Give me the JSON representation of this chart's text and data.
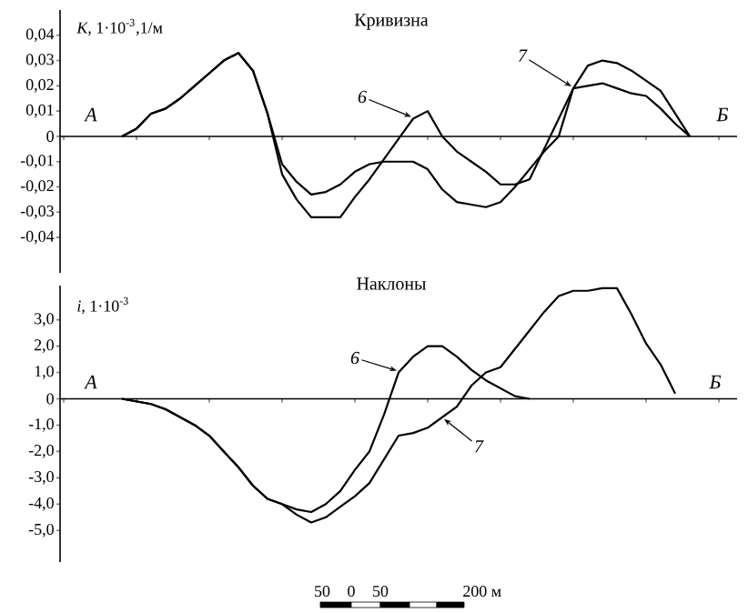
{
  "chart_data": [
    {
      "type": "line",
      "title": "Кривизна",
      "ylabel": "*K*, 1·10$^{-3}$,1/м",
      "categories": [
        null,
        null,
        null,
        null,
        null,
        null,
        null,
        null,
        null,
        null,
        null,
        null,
        null,
        null,
        null,
        null,
        null,
        null,
        null,
        null,
        null,
        null,
        null,
        null,
        null,
        null,
        null,
        null,
        null,
        null,
        null,
        null,
        null,
        null,
        null,
        null,
        null,
        null,
        null,
        null,
        null,
        null,
        null,
        null,
        null,
        null,
        null
      ],
      "series": [
        {
          "name": "6",
          "color": "#000000",
          "values": [
            null,
            null,
            null,
            null,
            0,
            0.003,
            0.009,
            0.011,
            0.015,
            0.02,
            0.025,
            0.03,
            0.033,
            0.026,
            0.009,
            -0.015,
            -0.025,
            -0.032,
            -0.032,
            -0.032,
            -0.024,
            -0.017,
            -0.009,
            -0.001,
            0.007,
            0.01,
            0.0,
            -0.006,
            -0.01,
            -0.014,
            -0.019,
            -0.019,
            -0.017,
            -0.005,
            0.007,
            0.019,
            0.028,
            0.03,
            0.029,
            0.026,
            0.022,
            0.018,
            0.009,
            0,
            null,
            null,
            null
          ]
        },
        {
          "name": "7",
          "color": "#000000",
          "values": [
            null,
            null,
            null,
            null,
            0,
            0.003,
            0.009,
            0.011,
            0.015,
            0.02,
            0.025,
            0.03,
            0.033,
            0.026,
            0.009,
            -0.011,
            -0.018,
            -0.023,
            -0.022,
            -0.019,
            -0.014,
            -0.011,
            -0.01,
            -0.01,
            -0.01,
            -0.013,
            -0.021,
            -0.026,
            -0.027,
            -0.028,
            -0.026,
            -0.02,
            -0.013,
            -0.006,
            0,
            0.019,
            0.02,
            0.021,
            0.019,
            0.017,
            0.016,
            0.011,
            0.005,
            0,
            null,
            null,
            null
          ]
        }
      ],
      "ylim": [
        -0.054,
        0.05
      ],
      "yticks": [
        {
          "value": 0.04,
          "label": "0,04"
        },
        {
          "value": 0.03,
          "label": "0,03"
        },
        {
          "value": 0.02,
          "label": "0,02"
        },
        {
          "value": 0.01,
          "label": "0,01"
        },
        0,
        {
          "value": -0.01,
          "label": "-0,01"
        },
        {
          "value": -0.02,
          "label": "-0,02"
        },
        {
          "value": -0.03,
          "label": "-0,03"
        },
        {
          "value": -0.04,
          "label": "-0,04"
        }
      ],
      "tick_labels": "y",
      "marker": "none",
      "line_style": "solid",
      "annotations": [
        "А",
        "Б"
      ]
    },
    {
      "type": "line",
      "title": "Наклоны",
      "ylabel": "*i*, 1·10$^{-3}$",
      "categories": [
        null,
        null,
        null,
        null,
        null,
        null,
        null,
        null,
        null,
        null,
        null,
        null,
        null,
        null,
        null,
        null,
        null,
        null,
        null,
        null,
        null,
        null,
        null,
        null,
        null,
        null,
        null,
        null,
        null,
        null,
        null,
        null,
        null,
        null,
        null,
        null,
        null,
        null,
        null,
        null,
        null,
        null,
        null,
        null,
        null,
        null,
        null
      ],
      "series": [
        {
          "name": "6",
          "color": "#000000",
          "values": [
            null,
            null,
            null,
            null,
            0,
            -0.1,
            -0.2,
            -0.4,
            -0.7,
            -1.0,
            -1.4,
            -2.0,
            -2.6,
            -3.3,
            -3.8,
            -4.0,
            -4.2,
            -4.3,
            -4.0,
            -3.5,
            -2.7,
            -2.0,
            -0.6,
            1.0,
            1.6,
            2.0,
            2.0,
            1.6,
            1.1,
            0.7,
            0.4,
            0.1,
            0,
            null,
            null,
            null,
            null,
            null,
            null,
            null,
            null,
            null,
            null,
            null,
            null,
            null,
            null
          ]
        },
        {
          "name": "7",
          "color": "#000000",
          "values": [
            null,
            null,
            null,
            null,
            0,
            -0.1,
            -0.2,
            -0.4,
            -0.7,
            -1.0,
            -1.4,
            -2.0,
            -2.6,
            -3.3,
            -3.8,
            -4.0,
            -4.4,
            -4.7,
            -4.5,
            -4.1,
            -3.7,
            -3.2,
            -2.3,
            -1.4,
            -1.3,
            -1.1,
            -0.7,
            -0.3,
            0.5,
            1.0,
            1.2,
            1.9,
            2.6,
            3.3,
            3.9,
            4.1,
            4.1,
            4.2,
            4.2,
            3.2,
            2.1,
            1.3,
            0.2,
            null,
            null,
            null,
            null
          ]
        }
      ],
      "ylim": [
        -6.2,
        4.3
      ],
      "yticks": [
        {
          "value": 3,
          "label": "3,0"
        },
        {
          "value": 2,
          "label": "2,0"
        },
        {
          "value": 1,
          "label": "1,0"
        },
        0,
        {
          "value": -1,
          "label": "-1,0"
        },
        {
          "value": -2,
          "label": "-2,0"
        },
        {
          "value": -3,
          "label": "-3,0"
        },
        {
          "value": -4,
          "label": "-4,0"
        },
        {
          "value": -5,
          "label": "-5,0"
        }
      ],
      "tick_labels": "y",
      "marker": "none",
      "line_style": "solid",
      "annotations": [
        "А",
        "Б",
        "50",
        "0",
        "50",
        "200 м"
      ]
    }
  ]
}
